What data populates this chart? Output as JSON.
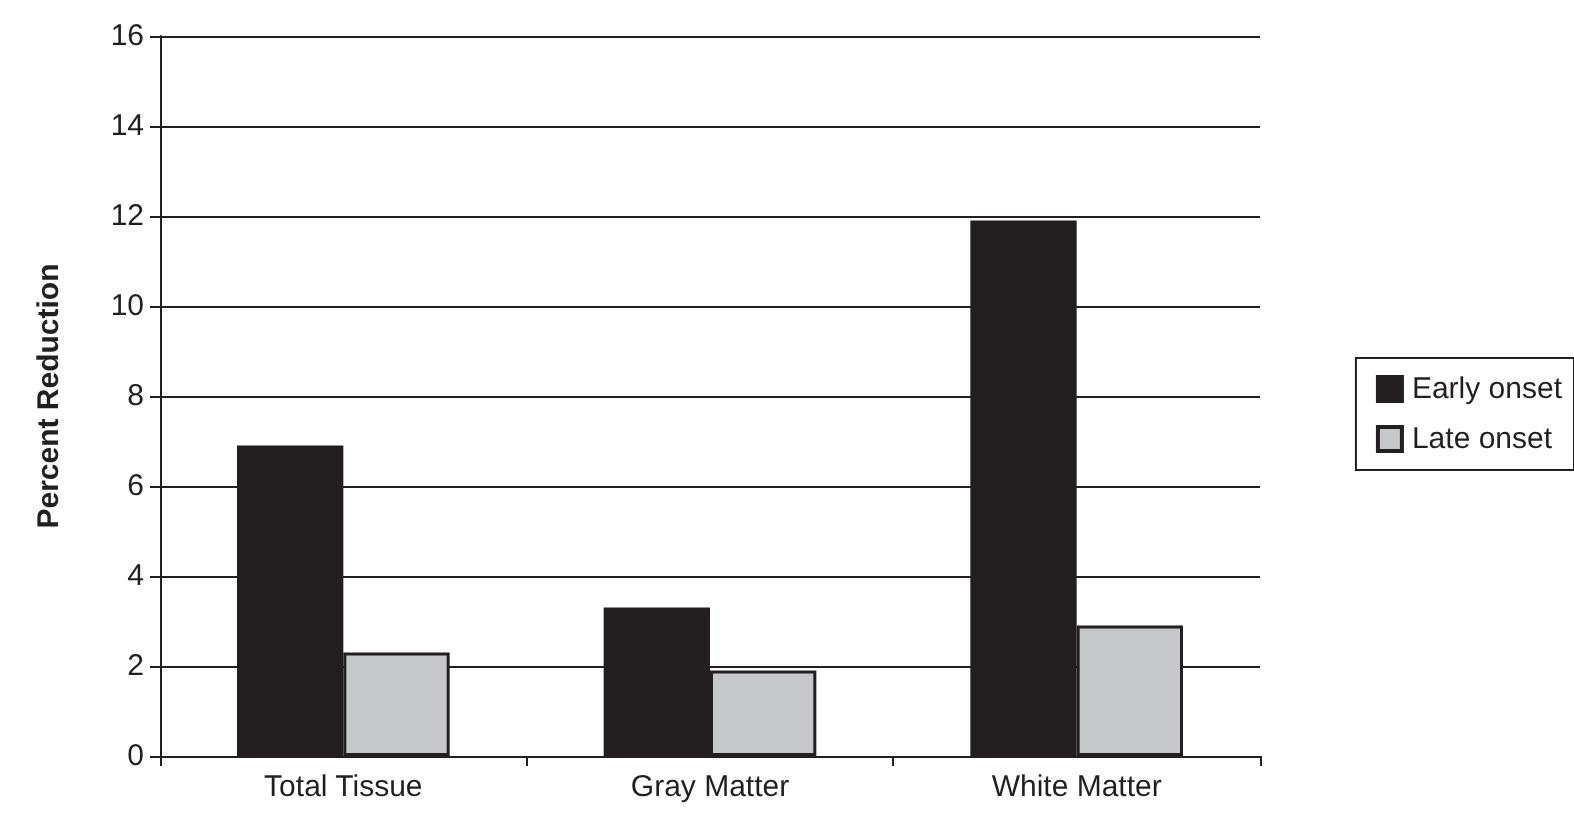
{
  "chart_data": {
    "type": "bar",
    "ylabel": "Percent Reduction",
    "categories": [
      "Total Tissue",
      "Gray Matter",
      "White Matter"
    ],
    "series": [
      {
        "name": "Early onset",
        "color": "#231f20",
        "values": [
          6.9,
          3.3,
          11.9
        ]
      },
      {
        "name": "Late onset",
        "color": "#c6c7c9",
        "values": [
          2.3,
          1.9,
          2.9
        ]
      }
    ],
    "ylim": [
      0,
      16
    ],
    "yticks": [
      0,
      2,
      4,
      6,
      8,
      10,
      12,
      14,
      16
    ],
    "grid": "y",
    "legend": "right"
  }
}
